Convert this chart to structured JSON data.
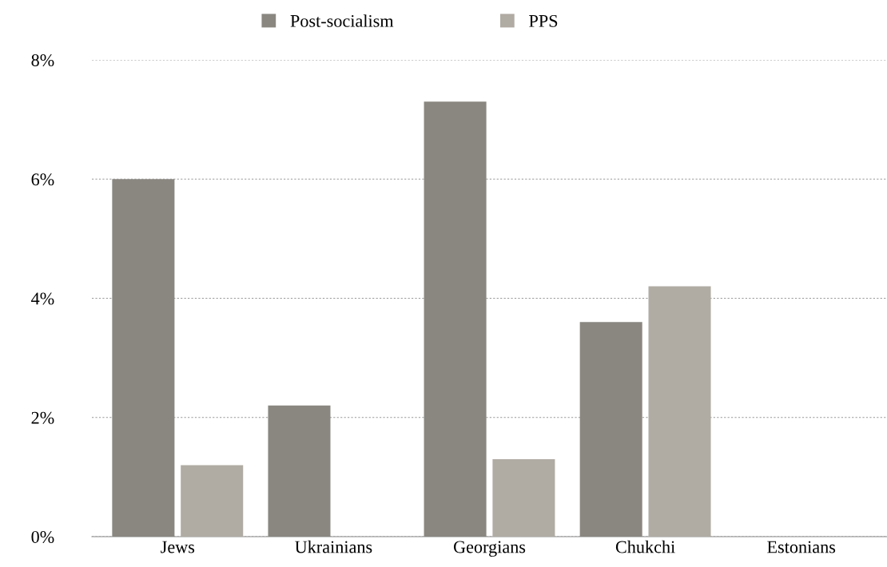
{
  "chart_data": {
    "type": "bar",
    "categories": [
      "Jews",
      "Ukrainians",
      "Georgians",
      "Chukchi",
      "Estonians"
    ],
    "series": [
      {
        "name": "Post-socialism",
        "color": "#8a8780",
        "values": [
          6.0,
          2.2,
          7.3,
          3.6,
          0
        ]
      },
      {
        "name": "PPS",
        "color": "#b0aba3",
        "values": [
          1.2,
          0,
          1.3,
          4.2,
          0
        ]
      }
    ],
    "ylim": [
      0,
      8
    ],
    "yticks": [
      {
        "value": 0,
        "label": "0%"
      },
      {
        "value": 2,
        "label": "2%"
      },
      {
        "value": 4,
        "label": "4%"
      },
      {
        "value": 6,
        "label": "6%"
      },
      {
        "value": 8,
        "label": "8%"
      }
    ],
    "grid": "y",
    "legend": "top"
  }
}
